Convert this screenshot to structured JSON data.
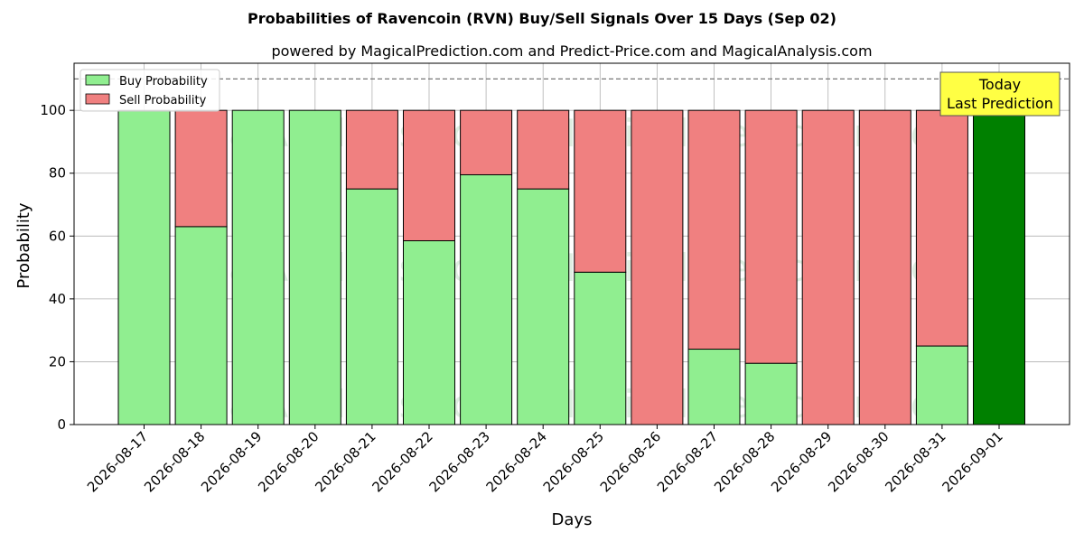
{
  "chart_data": {
    "type": "bar",
    "stacked": true,
    "title": "Probabilities of Ravencoin (RVN) Buy/Sell Signals Over 15 Days (Sep 02)",
    "subtitle": "powered by MagicalPrediction.com and Predict-Price.com and MagicalAnalysis.com",
    "xlabel": "Days",
    "ylabel": "Probability",
    "ylim": [
      0,
      115
    ],
    "yticks": [
      0,
      20,
      40,
      60,
      80,
      100
    ],
    "grid": true,
    "legend_position": "top-left",
    "reference_line": 110,
    "categories": [
      "2026-08-17",
      "2026-08-18",
      "2026-08-19",
      "2026-08-20",
      "2026-08-21",
      "2026-08-22",
      "2026-08-23",
      "2026-08-24",
      "2026-08-25",
      "2026-08-26",
      "2026-08-27",
      "2026-08-28",
      "2026-08-29",
      "2026-08-30",
      "2026-08-31",
      "2026-09-01"
    ],
    "series": [
      {
        "name": "Buy Probability",
        "color": "#90ee90",
        "values": [
          100,
          63,
          100,
          100,
          75,
          58.5,
          79.5,
          75,
          48.5,
          0,
          24,
          19.5,
          0,
          0,
          25,
          100
        ]
      },
      {
        "name": "Sell Probability",
        "color": "#f08080",
        "values": [
          0,
          37,
          0,
          0,
          25,
          41.5,
          20.5,
          25,
          51.5,
          100,
          76,
          80.5,
          100,
          100,
          75,
          0
        ]
      }
    ],
    "highlight": {
      "index": 15,
      "color": "#008000"
    },
    "annotation": {
      "line1": "Today",
      "line2": "Last Prediction",
      "background": "#ffff44"
    },
    "watermarks": [
      "MagicalAnalysis.com",
      "MagicalPrediction.com"
    ]
  }
}
